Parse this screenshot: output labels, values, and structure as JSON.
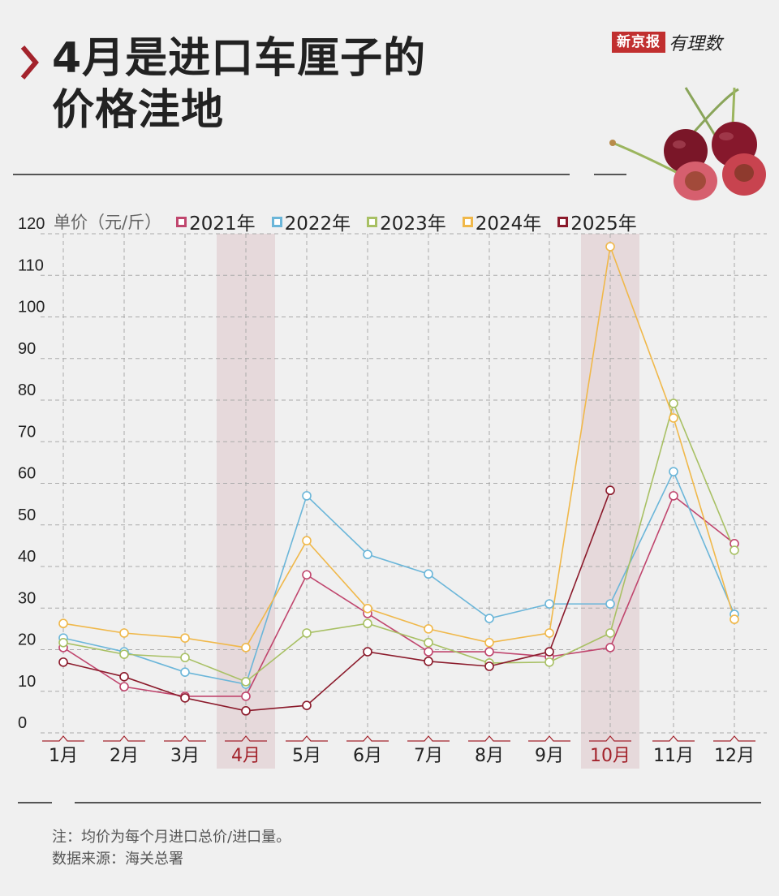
{
  "header": {
    "title_line1": "4月是进口车厘子的",
    "title_line2": "价格洼地",
    "brand_box": "新京报",
    "brand_script": "有理数",
    "accent_color": "#a3232c"
  },
  "legend": {
    "unit_label": "单价（元/斤）",
    "items": [
      {
        "label": "2021年",
        "color": "#c0466e"
      },
      {
        "label": "2022年",
        "color": "#6bb6d9"
      },
      {
        "label": "2023年",
        "color": "#a8c064"
      },
      {
        "label": "2024年",
        "color": "#f0b84a"
      },
      {
        "label": "2025年",
        "color": "#8b1a2b"
      }
    ]
  },
  "footer": {
    "note": "注：均价为每个月进口总价/进口量。",
    "source": "数据来源：海关总署"
  },
  "chart_data": {
    "type": "line",
    "title": "4月是进口车厘子的价格洼地",
    "xlabel": "",
    "ylabel": "单价（元/斤）",
    "ylim": [
      0,
      120
    ],
    "yticks": [
      0,
      10,
      20,
      30,
      40,
      50,
      60,
      70,
      80,
      90,
      100,
      110,
      120
    ],
    "grid": true,
    "legend_position": "top",
    "categories": [
      "1月",
      "2月",
      "3月",
      "4月",
      "5月",
      "6月",
      "7月",
      "8月",
      "9月",
      "10月",
      "11月",
      "12月"
    ],
    "highlighted_categories": [
      "4月",
      "10月"
    ],
    "highlight_label_color": "#a3232c",
    "series": [
      {
        "name": "2021年",
        "color": "#c0466e",
        "values": [
          20.5,
          11.1,
          8.8,
          8.8,
          38.0,
          28.7,
          19.5,
          19.5,
          18.3,
          20.5,
          57.0,
          45.5
        ]
      },
      {
        "name": "2022年",
        "color": "#6bb6d9",
        "values": [
          22.8,
          19.5,
          14.6,
          11.7,
          57.0,
          42.9,
          38.2,
          27.5,
          31.0,
          31.0,
          62.8,
          28.5
        ]
      },
      {
        "name": "2023年",
        "color": "#a8c064",
        "values": [
          21.7,
          18.9,
          18.1,
          12.3,
          24.0,
          26.3,
          21.7,
          16.8,
          17.0,
          24.0,
          79.2,
          43.9
        ]
      },
      {
        "name": "2024年",
        "color": "#f0b84a",
        "values": [
          26.3,
          24.0,
          22.8,
          20.5,
          46.2,
          29.9,
          25.0,
          21.7,
          24.0,
          116.9,
          75.7,
          27.3
        ]
      },
      {
        "name": "2025年",
        "color": "#8b1a2b",
        "values": [
          17.0,
          13.5,
          8.4,
          5.3,
          6.6,
          19.5,
          17.2,
          16.0,
          19.5,
          58.3,
          null,
          null
        ]
      }
    ]
  }
}
